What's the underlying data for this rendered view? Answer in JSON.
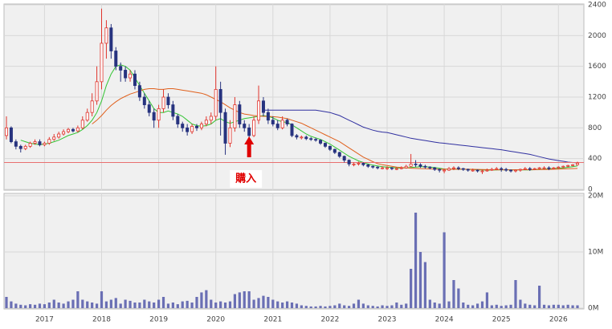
{
  "chart_data": [
    {
      "type": "candlestick",
      "categories": [
        null,
        null,
        null,
        null,
        null,
        null,
        null,
        null,
        "2017",
        null,
        null,
        null,
        null,
        null,
        null,
        null,
        null,
        null,
        null,
        null,
        "2018",
        null,
        null,
        null,
        null,
        null,
        null,
        null,
        null,
        null,
        null,
        null,
        "2019",
        null,
        null,
        null,
        null,
        null,
        null,
        null,
        null,
        null,
        null,
        null,
        "2020",
        null,
        null,
        null,
        null,
        null,
        null,
        null,
        null,
        null,
        null,
        null,
        "2021",
        null,
        null,
        null,
        null,
        null,
        null,
        null,
        null,
        null,
        null,
        null,
        "2022",
        null,
        null,
        null,
        null,
        null,
        null,
        null,
        null,
        null,
        null,
        null,
        "2023",
        null,
        null,
        null,
        null,
        null,
        null,
        null,
        null,
        null,
        null,
        null,
        "2024",
        null,
        null,
        null,
        null,
        null,
        null,
        null,
        null,
        null,
        null,
        null,
        "2025",
        null,
        null,
        null,
        null,
        null,
        null,
        null,
        null,
        null,
        null,
        null,
        "2026",
        null,
        null,
        null,
        null
      ],
      "open": [
        700,
        800,
        620,
        560,
        530,
        560,
        600,
        620,
        580,
        600,
        650,
        680,
        720,
        750,
        780,
        760,
        800,
        900,
        1000,
        1150,
        1400,
        1900,
        2100,
        1800,
        1600,
        1550,
        1450,
        1500,
        1350,
        1200,
        1100,
        1000,
        900,
        1050,
        1200,
        1100,
        950,
        850,
        800,
        750,
        820,
        800,
        850,
        900,
        950,
        1300,
        1000,
        600,
        800,
        1100,
        850,
        800,
        700,
        900,
        1150,
        1000,
        900,
        850,
        800,
        900,
        850,
        700,
        680,
        680,
        660,
        650,
        640,
        600,
        560,
        520,
        480,
        430,
        380,
        330,
        330,
        340,
        320,
        300,
        290,
        280,
        280,
        280,
        270,
        270,
        280,
        300,
        330,
        320,
        300,
        290,
        280,
        260,
        250,
        250,
        270,
        280,
        270,
        260,
        250,
        250,
        240,
        240,
        250,
        260,
        270,
        260,
        250,
        240,
        250,
        260,
        270,
        260,
        270,
        280,
        280,
        270,
        280,
        290,
        300,
        310,
        320
      ],
      "high": [
        950,
        820,
        650,
        580,
        580,
        620,
        650,
        650,
        620,
        680,
        720,
        750,
        780,
        800,
        800,
        830,
        950,
        1050,
        1250,
        1600,
        2350,
        2200,
        2150,
        1850,
        1650,
        1600,
        1550,
        1550,
        1400,
        1250,
        1150,
        1050,
        1100,
        1300,
        1250,
        1150,
        980,
        880,
        850,
        850,
        850,
        880,
        950,
        1000,
        1600,
        1400,
        1050,
        900,
        1200,
        1150,
        900,
        850,
        950,
        1350,
        1200,
        1050,
        950,
        900,
        950,
        920,
        860,
        720,
        700,
        700,
        680,
        670,
        650,
        610,
        570,
        530,
        490,
        440,
        390,
        350,
        360,
        350,
        330,
        310,
        300,
        300,
        300,
        290,
        290,
        300,
        320,
        460,
        380,
        340,
        320,
        300,
        290,
        270,
        270,
        290,
        300,
        300,
        280,
        270,
        270,
        260,
        260,
        270,
        280,
        290,
        290,
        280,
        260,
        260,
        270,
        290,
        290,
        280,
        290,
        300,
        300,
        290,
        300,
        310,
        320,
        330,
        360
      ],
      "low": [
        650,
        600,
        520,
        480,
        510,
        540,
        580,
        560,
        560,
        580,
        630,
        660,
        700,
        730,
        740,
        740,
        780,
        880,
        950,
        1100,
        1300,
        1700,
        1700,
        1550,
        1400,
        1400,
        1400,
        1300,
        1150,
        1050,
        950,
        800,
        800,
        1000,
        1050,
        900,
        800,
        750,
        700,
        720,
        760,
        770,
        820,
        850,
        900,
        700,
        450,
        550,
        750,
        800,
        750,
        650,
        680,
        850,
        950,
        850,
        820,
        770,
        780,
        820,
        680,
        650,
        650,
        640,
        630,
        620,
        580,
        540,
        500,
        460,
        410,
        350,
        300,
        300,
        310,
        300,
        280,
        270,
        260,
        260,
        250,
        250,
        250,
        260,
        270,
        290,
        290,
        280,
        270,
        260,
        240,
        220,
        210,
        240,
        250,
        250,
        240,
        230,
        230,
        220,
        200,
        230,
        240,
        250,
        230,
        230,
        220,
        220,
        230,
        250,
        240,
        250,
        260,
        260,
        250,
        260,
        270,
        280,
        290,
        300,
        310
      ],
      "close": [
        800,
        620,
        560,
        530,
        560,
        600,
        620,
        580,
        600,
        650,
        680,
        720,
        750,
        780,
        760,
        800,
        900,
        1000,
        1150,
        1400,
        1900,
        2100,
        1800,
        1600,
        1550,
        1450,
        1500,
        1350,
        1200,
        1100,
        1000,
        900,
        1050,
        1200,
        1100,
        950,
        850,
        800,
        750,
        820,
        800,
        850,
        900,
        950,
        1300,
        1000,
        600,
        800,
        1100,
        850,
        800,
        700,
        900,
        1150,
        1000,
        900,
        850,
        800,
        900,
        850,
        700,
        680,
        680,
        660,
        650,
        640,
        600,
        560,
        520,
        480,
        430,
        380,
        330,
        330,
        340,
        320,
        300,
        290,
        280,
        280,
        280,
        270,
        270,
        280,
        300,
        330,
        320,
        300,
        290,
        280,
        260,
        250,
        250,
        270,
        280,
        270,
        260,
        250,
        250,
        240,
        240,
        250,
        260,
        270,
        260,
        250,
        240,
        250,
        260,
        270,
        260,
        270,
        280,
        280,
        270,
        280,
        290,
        300,
        310,
        320,
        340
      ],
      "up_color": "#e0342c",
      "down_color": "#27337f",
      "series": [
        {
          "color": "#33c433",
          "values": [
            null,
            null,
            null,
            640,
            620,
            600,
            590,
            580,
            590,
            600,
            620,
            640,
            670,
            700,
            720,
            740,
            780,
            830,
            900,
            1000,
            1150,
            1350,
            1500,
            1600,
            1620,
            1600,
            1550,
            1450,
            1350,
            1250,
            1150,
            1050,
            1000,
            1000,
            1020,
            1000,
            980,
            950,
            900,
            850,
            830,
            820,
            830,
            850,
            900,
            920,
            880,
            860,
            880,
            900,
            920,
            930,
            940,
            950,
            960,
            950,
            930,
            900,
            880,
            870,
            840,
            800,
            760,
            720,
            690,
            670,
            650,
            620,
            590,
            550,
            510,
            470,
            430,
            400,
            370,
            350,
            330,
            315,
            305,
            295,
            290,
            285,
            280,
            278,
            280,
            285,
            290,
            295,
            295,
            290,
            285,
            275,
            265,
            262,
            262,
            262,
            262,
            260,
            258,
            255,
            252,
            250,
            250,
            252,
            255,
            255,
            255,
            253,
            252,
            252,
            254,
            256,
            258,
            262,
            266,
            270,
            275,
            280,
            287,
            295,
            305
          ]
        },
        {
          "color": "#e0601c",
          "values": [
            null,
            null,
            null,
            null,
            null,
            null,
            null,
            null,
            null,
            null,
            null,
            null,
            null,
            null,
            null,
            null,
            null,
            null,
            850,
            900,
            960,
            1030,
            1090,
            1140,
            1180,
            1210,
            1240,
            1260,
            1280,
            1300,
            1310,
            1310,
            1300,
            1300,
            1310,
            1310,
            1300,
            1290,
            1280,
            1270,
            1260,
            1250,
            1230,
            1200,
            1170,
            1140,
            1100,
            1060,
            1030,
            1000,
            980,
            970,
            960,
            955,
            950,
            950,
            945,
            940,
            930,
            920,
            900,
            880,
            860,
            830,
            800,
            770,
            740,
            710,
            680,
            650,
            620,
            580,
            540,
            500,
            460,
            420,
            390,
            360,
            335,
            320,
            310,
            300,
            290,
            285,
            280,
            275,
            272,
            270,
            268,
            266,
            264,
            262,
            262,
            262,
            262,
            262,
            262,
            262,
            261,
            260,
            258,
            257,
            256,
            255,
            255,
            255,
            255,
            255,
            256,
            256,
            256,
            257,
            258,
            259,
            260,
            262,
            264,
            266,
            268,
            270,
            272
          ]
        },
        {
          "color": "#3030a0",
          "values": [
            null,
            null,
            null,
            null,
            null,
            null,
            null,
            null,
            null,
            null,
            null,
            null,
            null,
            null,
            null,
            null,
            null,
            null,
            null,
            null,
            null,
            null,
            null,
            null,
            null,
            null,
            null,
            null,
            null,
            null,
            null,
            null,
            null,
            null,
            null,
            null,
            null,
            null,
            null,
            null,
            null,
            null,
            null,
            null,
            null,
            null,
            null,
            null,
            null,
            null,
            null,
            null,
            null,
            null,
            1030,
            1030,
            1030,
            1030,
            1030,
            1030,
            1030,
            1030,
            1030,
            1030,
            1030,
            1030,
            1020,
            1010,
            1000,
            980,
            960,
            930,
            900,
            870,
            840,
            810,
            790,
            770,
            755,
            745,
            740,
            725,
            710,
            695,
            680,
            665,
            655,
            645,
            635,
            625,
            615,
            605,
            600,
            592,
            585,
            578,
            571,
            564,
            557,
            550,
            543,
            536,
            529,
            522,
            515,
            505,
            495,
            485,
            475,
            465,
            455,
            440,
            425,
            410,
            395,
            385,
            375,
            365,
            355,
            350,
            345
          ]
        }
      ],
      "reference_line": {
        "value": 350,
        "color": "#e87070"
      },
      "annotation": {
        "text": "購入",
        "x_index": 51,
        "color": "#e00000"
      },
      "ylim": [
        0,
        2400
      ],
      "yticks": [
        0,
        400,
        800,
        1200,
        1600,
        2000,
        2400
      ],
      "grid": true
    },
    {
      "type": "bar",
      "values": [
        2.0,
        1.2,
        0.8,
        0.6,
        0.5,
        0.7,
        0.6,
        0.8,
        0.7,
        1.0,
        1.5,
        1.0,
        0.8,
        1.2,
        1.5,
        3.0,
        1.5,
        1.2,
        1.0,
        0.8,
        3.0,
        1.2,
        1.5,
        1.8,
        0.8,
        1.5,
        1.3,
        1.0,
        1.0,
        1.5,
        1.2,
        1.0,
        1.5,
        2.0,
        0.8,
        1.0,
        0.7,
        1.2,
        1.3,
        1.0,
        2.0,
        2.8,
        3.2,
        1.5,
        1.0,
        1.2,
        1.0,
        1.2,
        2.5,
        2.8,
        3.0,
        3.0,
        1.5,
        1.8,
        2.2,
        2.0,
        1.5,
        1.2,
        1.0,
        1.2,
        1.0,
        0.8,
        0.5,
        0.4,
        0.3,
        0.3,
        0.4,
        0.3,
        0.4,
        0.5,
        0.8,
        0.5,
        0.4,
        0.8,
        1.5,
        0.8,
        0.5,
        0.4,
        0.3,
        0.5,
        0.4,
        0.5,
        1.0,
        0.6,
        0.8,
        7.0,
        17.0,
        10.0,
        8.2,
        1.5,
        1.0,
        0.8,
        13.5,
        1.2,
        5.0,
        3.5,
        1.0,
        0.6,
        0.5,
        0.8,
        1.2,
        2.8,
        0.5,
        0.6,
        0.4,
        0.5,
        0.6,
        5.0,
        1.5,
        0.8,
        0.6,
        0.5,
        4.0,
        0.6,
        0.5,
        0.6,
        0.6,
        0.5,
        0.6,
        0.5,
        0.5
      ],
      "color": "#6a6fb4",
      "ylim": [
        0,
        20
      ],
      "yticks": [
        {
          "value": 0,
          "label": "0M"
        },
        {
          "value": 10,
          "label": "10M"
        },
        {
          "value": 20,
          "label": "20M"
        }
      ],
      "grid": true
    }
  ]
}
